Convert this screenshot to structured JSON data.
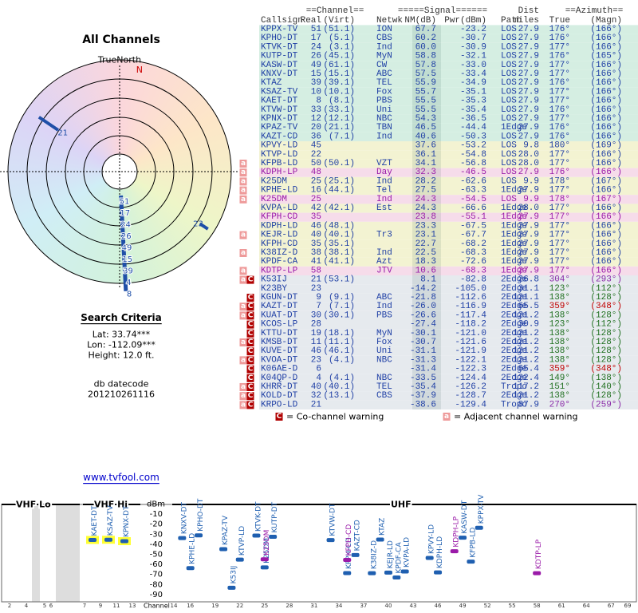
{
  "header": {
    "channel_group": "==Channel==",
    "signal_group": "=====Signal======",
    "dist_top": "Dist",
    "azimuth_group": "==Azimuth==",
    "columns": [
      "Callsign",
      "Real",
      "(Virt)",
      "Netwk",
      "NM(dB)",
      "Pwr(dBm)",
      "Path",
      "miles",
      "True",
      "(Magn)"
    ]
  },
  "table": {
    "rows": [
      {
        "cells": [
          "KPPX-TV",
          "51",
          "(51.1)",
          "ION",
          "67.7",
          "-23.2",
          "LOS",
          "27.9",
          "176°",
          "(166°)"
        ],
        "background": "#d5eee2",
        "color": "#1f3fa5"
      },
      {
        "cells": [
          "KPHO-DT",
          "17",
          "(5.1)",
          "CBS",
          "60.2",
          "-30.7",
          "LOS",
          "27.9",
          "176°",
          "(166°)"
        ],
        "background": "#d5eee2",
        "color": "#1f3fa5"
      },
      {
        "cells": [
          "KTVK-DT",
          "24",
          "(3.1)",
          "Ind",
          "60.0",
          "-30.9",
          "LOS",
          "27.9",
          "177°",
          "(166°)"
        ],
        "background": "#d5eee2",
        "color": "#1f3fa5"
      },
      {
        "cells": [
          "KUTP-DT",
          "26",
          "(45.1)",
          "MyN",
          "58.8",
          "-32.1",
          "LOS",
          "27.9",
          "176°",
          "(165°)"
        ],
        "background": "#d5eee2",
        "color": "#1f3fa5"
      },
      {
        "cells": [
          "KASW-DT",
          "49",
          "(61.1)",
          "CW",
          "57.8",
          "-33.0",
          "LOS",
          "27.9",
          "177°",
          "(166°)"
        ],
        "background": "#d5eee2",
        "color": "#1f3fa5"
      },
      {
        "cells": [
          "KNXV-DT",
          "15",
          "(15.1)",
          "ABC",
          "57.5",
          "-33.4",
          "LOS",
          "27.9",
          "177°",
          "(166°)"
        ],
        "background": "#d5eee2",
        "color": "#1f3fa5"
      },
      {
        "cells": [
          "KTAZ",
          "39",
          "(39.1)",
          "TEL",
          "55.9",
          "-34.9",
          "LOS",
          "27.9",
          "176°",
          "(166°)"
        ],
        "background": "#d5eee2",
        "color": "#1f3fa5"
      },
      {
        "cells": [
          "KSAZ-TV",
          "10",
          "(10.1)",
          "Fox",
          "55.7",
          "-35.1",
          "LOS",
          "27.9",
          "177°",
          "(166°)"
        ],
        "background": "#d5eee2",
        "color": "#1f3fa5"
      },
      {
        "cells": [
          "KAET-DT",
          "8",
          "(8.1)",
          "PBS",
          "55.5",
          "-35.3",
          "LOS",
          "27.9",
          "177°",
          "(166°)"
        ],
        "background": "#d5eee2",
        "color": "#1f3fa5"
      },
      {
        "cells": [
          "KTVW-DT",
          "33",
          "(33.1)",
          "Uni",
          "55.5",
          "-35.4",
          "LOS",
          "27.9",
          "176°",
          "(166°)"
        ],
        "background": "#d5eee2",
        "color": "#1f3fa5"
      },
      {
        "cells": [
          "KPNX-DT",
          "12",
          "(12.1)",
          "NBC",
          "54.3",
          "-36.5",
          "LOS",
          "27.9",
          "177°",
          "(166°)"
        ],
        "background": "#d5eee2",
        "color": "#1f3fa5"
      },
      {
        "cells": [
          "KPAZ-TV",
          "20",
          "(21.1)",
          "TBN",
          "46.5",
          "-44.4",
          "1Edge",
          "27.9",
          "176°",
          "(166°)"
        ],
        "background": "#d5eee2",
        "color": "#1f3fa5"
      },
      {
        "cells": [
          "KAZT-CD",
          "36",
          "(7.1)",
          "Ind",
          "40.6",
          "-50.3",
          "LOS",
          "27.9",
          "176°",
          "(166°)"
        ],
        "background": "#d5eee2",
        "color": "#1f3fa5"
      },
      {
        "cells": [
          "KPVY-LD",
          "45",
          null,
          null,
          "37.6",
          "-53.2",
          "LOS",
          "9.8",
          "180°",
          "(169°)"
        ],
        "background": "#f3f3d2",
        "color": "#1f3fa5"
      },
      {
        "cells": [
          "KTVP-LD",
          "22",
          null,
          null,
          "36.1",
          "-54.8",
          "LOS",
          "28.0",
          "177°",
          "(166°)"
        ],
        "background": "#f3f3d2",
        "color": "#1f3fa5"
      },
      {
        "cells": [
          "KFPB-LD",
          "50",
          "(50.1)",
          "VZT",
          "34.1",
          "-56.8",
          "LOS",
          "28.0",
          "177°",
          "(166°)"
        ],
        "background": "#f3f3d2",
        "color": "#1f3fa5",
        "warnings": [
          "a"
        ]
      },
      {
        "cells": [
          "KDPH-LP",
          "48",
          null,
          "Day",
          "32.3",
          "-46.5",
          "LOS",
          "27.9",
          "176°",
          "(166°)"
        ],
        "background": "#f6dcea",
        "color": "#9a1aa8",
        "warnings": [
          "a"
        ]
      },
      {
        "cells": [
          "K25DM",
          "25",
          "(25.1)",
          "Ind",
          "28.2",
          "-62.6",
          "LOS",
          "9.9",
          "178°",
          "(167°)"
        ],
        "background": "#f3f3d2",
        "color": "#1f3fa5",
        "warnings": [
          "a"
        ]
      },
      {
        "cells": [
          "KPHE-LD",
          "16",
          "(44.1)",
          "Tel",
          "27.5",
          "-63.3",
          "1Edge",
          "27.9",
          "177°",
          "(166°)"
        ],
        "background": "#f3f3d2",
        "color": "#1f3fa5",
        "warnings": [
          "a"
        ]
      },
      {
        "cells": [
          "K25DM",
          "25",
          null,
          "Ind",
          "24.3",
          "-54.5",
          "LOS",
          "9.9",
          "178°",
          "(167°)"
        ],
        "background": "#f6dcea",
        "color": "#9a1aa8",
        "warnings": [
          "a"
        ]
      },
      {
        "cells": [
          "KVPA-LD",
          "42",
          "(42.1)",
          "Est",
          "24.3",
          "-66.6",
          "1Edge",
          "28.0",
          "177°",
          "(166°)"
        ],
        "background": "#f3f3d2",
        "color": "#1f3fa5"
      },
      {
        "cells": [
          "KFPH-CD",
          "35",
          null,
          null,
          "23.8",
          "-55.1",
          "1Edge",
          "27.9",
          "177°",
          "(166°)"
        ],
        "background": "#f6dcea",
        "color": "#9a1aa8"
      },
      {
        "cells": [
          "KDPH-LD",
          "46",
          "(48.1)",
          null,
          "23.3",
          "-67.5",
          "1Edge",
          "27.9",
          "177°",
          "(166°)"
        ],
        "background": "#f3f3d2",
        "color": "#1f3fa5"
      },
      {
        "cells": [
          "KEJR-LD",
          "40",
          "(40.1)",
          "Tr3",
          "23.1",
          "-67.7",
          "1Edge",
          "27.9",
          "177°",
          "(166°)"
        ],
        "background": "#f3f3d2",
        "color": "#1f3fa5",
        "warnings": [
          "a"
        ]
      },
      {
        "cells": [
          "KFPH-CD",
          "35",
          "(35.1)",
          null,
          "22.7",
          "-68.2",
          "1Edge",
          "27.9",
          "177°",
          "(166°)"
        ],
        "background": "#f3f3d2",
        "color": "#1f3fa5"
      },
      {
        "cells": [
          "K38IZ-D",
          "38",
          "(38.1)",
          "Ind",
          "22.5",
          "-68.3",
          "1Edge",
          "27.9",
          "177°",
          "(166°)"
        ],
        "background": "#f3f3d2",
        "color": "#1f3fa5",
        "warnings": [
          "a"
        ]
      },
      {
        "cells": [
          "KPDF-CA",
          "41",
          "(41.1)",
          "Azt",
          "18.3",
          "-72.6",
          "1Edge",
          "27.9",
          "177°",
          "(166°)"
        ],
        "background": "#f3f3d2",
        "color": "#1f3fa5"
      },
      {
        "cells": [
          "KDTP-LP",
          "58",
          null,
          "JTV",
          "10.6",
          "-68.3",
          "1Edge",
          "27.9",
          "177°",
          "(166°)"
        ],
        "background": "#f6dcea",
        "color": "#9a1aa8",
        "warnings": [
          "a"
        ]
      },
      {
        "cells": [
          "K53IJ",
          "21",
          "(53.1)",
          null,
          "8.1",
          "-82.8",
          "2Edge",
          "26.8",
          "304°",
          "(293°)"
        ],
        "background": "#e6eaee",
        "color": "#1f3fa5",
        "azimuth_color": "#8a2aa8",
        "warnings": [
          "a",
          "C"
        ]
      },
      {
        "cells": [
          "K23BY",
          "23",
          null,
          null,
          "-14.2",
          "-105.0",
          "2Edge",
          "31.1",
          "123°",
          "(112°)"
        ],
        "background": "#e6eaee",
        "color": "#1f3fa5",
        "azimuth_color": "#207020"
      },
      {
        "cells": [
          "KGUN-DT",
          "9",
          "(9.1)",
          "ABC",
          "-21.8",
          "-112.6",
          "2Edge",
          "121.1",
          "138°",
          "(128°)"
        ],
        "background": "#e6eaee",
        "color": "#1f3fa5",
        "azimuth_color": "#207020",
        "warnings": [
          "C"
        ]
      },
      {
        "cells": [
          "KAZT-DT",
          "7",
          "(7.1)",
          "Ind",
          "-26.0",
          "-116.9",
          "2Edge",
          "65.5",
          "359°",
          "(348°)"
        ],
        "background": "#e6eaee",
        "color": "#1f3fa5",
        "azimuth_color": "#c00000",
        "warnings": [
          "a",
          "C"
        ]
      },
      {
        "cells": [
          "KUAT-DT",
          "30",
          "(30.1)",
          "PBS",
          "-26.6",
          "-117.4",
          "2Edge",
          "121.2",
          "138°",
          "(128°)"
        ],
        "background": "#e6eaee",
        "color": "#1f3fa5",
        "azimuth_color": "#207020",
        "warnings": [
          "a",
          "C"
        ]
      },
      {
        "cells": [
          "KCOS-LP",
          "28",
          null,
          null,
          "-27.4",
          "-118.2",
          "2Edge",
          "30.9",
          "123°",
          "(112°)"
        ],
        "background": "#e6eaee",
        "color": "#1f3fa5",
        "azimuth_color": "#207020",
        "warnings": [
          "C"
        ]
      },
      {
        "cells": [
          "KTTU-DT",
          "19",
          "(18.1)",
          "MyN",
          "-30.1",
          "-121.0",
          "2Edge",
          "121.2",
          "138°",
          "(128°)"
        ],
        "background": "#e6eaee",
        "color": "#1f3fa5",
        "azimuth_color": "#207020",
        "warnings": [
          "C"
        ]
      },
      {
        "cells": [
          "KMSB-DT",
          "11",
          "(11.1)",
          "Fox",
          "-30.7",
          "-121.6",
          "2Edge",
          "121.2",
          "138°",
          "(128°)"
        ],
        "background": "#e6eaee",
        "color": "#1f3fa5",
        "azimuth_color": "#207020",
        "warnings": [
          "a",
          "C"
        ]
      },
      {
        "cells": [
          "KUVE-DT",
          "46",
          "(46.1)",
          "Uni",
          "-31.1",
          "-121.9",
          "2Edge",
          "121.2",
          "138°",
          "(128°)"
        ],
        "background": "#e6eaee",
        "color": "#1f3fa5",
        "azimuth_color": "#207020",
        "warnings": [
          "C"
        ]
      },
      {
        "cells": [
          "KVOA-DT",
          "23",
          "(4.1)",
          "NBC",
          "-31.3",
          "-122.1",
          "2Edge",
          "121.2",
          "138°",
          "(128°)"
        ],
        "background": "#e6eaee",
        "color": "#1f3fa5",
        "azimuth_color": "#207020",
        "warnings": [
          "a",
          "C"
        ]
      },
      {
        "cells": [
          "K06AE-D",
          "6",
          null,
          null,
          "-31.4",
          "-122.3",
          "2Edge",
          "65.4",
          "359°",
          "(348°)"
        ],
        "background": "#e6eaee",
        "color": "#1f3fa5",
        "azimuth_color": "#c00000",
        "warnings": [
          "C"
        ]
      },
      {
        "cells": [
          "K04QP-D",
          "4",
          "(4.1)",
          "NBC",
          "-33.5",
          "-124.4",
          "2Edge",
          "122.4",
          "149°",
          "(138°)"
        ],
        "background": "#e6eaee",
        "color": "#1f3fa5",
        "azimuth_color": "#207020",
        "warnings": [
          "C"
        ]
      },
      {
        "cells": [
          "KHRR-DT",
          "40",
          "(40.1)",
          "TEL",
          "-35.4",
          "-126.2",
          "Tropo",
          "117.2",
          "151°",
          "(140°)"
        ],
        "background": "#e6eaee",
        "color": "#1f3fa5",
        "azimuth_color": "#207020",
        "warnings": [
          "a",
          "C"
        ]
      },
      {
        "cells": [
          "KOLD-DT",
          "32",
          "(13.1)",
          "CBS",
          "-37.9",
          "-128.7",
          "2Edge",
          "121.2",
          "138°",
          "(128°)"
        ],
        "background": "#e6eaee",
        "color": "#1f3fa5",
        "azimuth_color": "#207020",
        "warnings": [
          "a",
          "C"
        ]
      },
      {
        "cells": [
          "KRPO-LD",
          "21",
          null,
          null,
          "-38.6",
          "-129.4",
          "Tropo",
          "87.9",
          "270°",
          "(259°)"
        ],
        "background": "#e6eaee",
        "color": "#1f3fa5",
        "azimuth_color": "#8a2aa8",
        "warnings": [
          "a",
          "C"
        ]
      }
    ]
  },
  "legend": [
    {
      "icon": "C",
      "text": "= Co-channel warning"
    },
    {
      "icon": "a",
      "text": "= Adjacent channel warning"
    }
  ],
  "polar": {
    "title": "All Channels",
    "north_label": "TrueNorth",
    "magnetic_label": "N",
    "magnetic_azimuth": 11,
    "outer": [
      {
        "text": "21",
        "azimuth": 304
      },
      {
        "text": "23",
        "azimuth": 123
      }
    ],
    "cluster_azimuth": 177,
    "cluster": [
      "51",
      "17",
      "24",
      "26",
      "49",
      "15",
      "39",
      "4",
      "8"
    ]
  },
  "search": {
    "title": "Search Criteria",
    "lat": "Lat: 33.74***",
    "lon": "Lon: -112.09***",
    "height": "Height: 12.0 ft.",
    "datecode_label": "db datecode",
    "datecode": "201210261116",
    "link": "www.tvfool.com"
  },
  "spectrum": {
    "bands": [
      "VHF Lo",
      "VHF Hi",
      "UHF"
    ],
    "y_label": "dBm",
    "x_label": "Channel",
    "ylim": [
      -96,
      0
    ],
    "yticks": [
      -10,
      -20,
      -30,
      -40,
      -50,
      -60,
      -70,
      -80,
      -90
    ],
    "xticks": [
      2,
      4,
      5,
      6,
      7,
      9,
      11,
      13,
      14,
      16,
      19,
      22,
      25,
      28,
      31,
      34,
      37,
      40,
      43,
      46,
      49,
      52,
      55,
      58,
      61,
      64,
      67,
      69
    ],
    "stations": [
      {
        "name": "KAET-DT",
        "channel": 8,
        "dbm": -35.3,
        "color": "#1f5fb0"
      },
      {
        "name": "KSAZ-TV",
        "channel": 10,
        "dbm": -35.1,
        "color": "#1f5fb0"
      },
      {
        "name": "KPNX-DT",
        "channel": 12,
        "dbm": -36.5,
        "color": "#1f5fb0"
      },
      {
        "name": "KNXV-DT",
        "channel": 15,
        "dbm": -33.4,
        "color": "#1f5fb0"
      },
      {
        "name": "KPHE-LD",
        "channel": 16,
        "dbm": -63.3,
        "color": "#1f5fb0"
      },
      {
        "name": "KPHO-DT",
        "channel": 17,
        "dbm": -30.7,
        "color": "#1f5fb0"
      },
      {
        "name": "KPAZ-TV",
        "channel": 20,
        "dbm": -44.4,
        "color": "#1f5fb0"
      },
      {
        "name": "K53IJ",
        "channel": 21,
        "dbm": -82.8,
        "color": "#1f5fb0"
      },
      {
        "name": "KTVP-LD",
        "channel": 22,
        "dbm": -54.8,
        "color": "#1f5fb0"
      },
      {
        "name": "KTVK-DT",
        "channel": 24,
        "dbm": -30.9,
        "color": "#1f5fb0"
      },
      {
        "name": "K25DM",
        "channel": 25,
        "dbm": -62.6,
        "color": "#1f5fb0"
      },
      {
        "name": "K25DM",
        "channel": 25,
        "dbm": -54.5,
        "color": "#9a1aa8"
      },
      {
        "name": "KUTP-DT",
        "channel": 26,
        "dbm": -32.1,
        "color": "#1f5fb0"
      },
      {
        "name": "KTVW-DT",
        "channel": 33,
        "dbm": -35.4,
        "color": "#1f5fb0"
      },
      {
        "name": "KFPH-CD",
        "channel": 35,
        "dbm": -68.2,
        "color": "#1f5fb0"
      },
      {
        "name": "KFPH-CD",
        "channel": 35,
        "dbm": -55.1,
        "color": "#9a1aa8"
      },
      {
        "name": "KAZT-CD",
        "channel": 36,
        "dbm": -50.3,
        "color": "#1f5fb0"
      },
      {
        "name": "K38IZ-D",
        "channel": 38,
        "dbm": -68.3,
        "color": "#1f5fb0"
      },
      {
        "name": "KTAZ",
        "channel": 39,
        "dbm": -34.9,
        "color": "#1f5fb0"
      },
      {
        "name": "KEJR-LD",
        "channel": 40,
        "dbm": -67.7,
        "color": "#1f5fb0"
      },
      {
        "name": "KPDF-CA",
        "channel": 41,
        "dbm": -72.6,
        "color": "#1f5fb0"
      },
      {
        "name": "KVPA-LD",
        "channel": 42,
        "dbm": -66.6,
        "color": "#1f5fb0"
      },
      {
        "name": "KPVY-LD",
        "channel": 45,
        "dbm": -53.2,
        "color": "#1f5fb0"
      },
      {
        "name": "KDPH-LD",
        "channel": 46,
        "dbm": -67.5,
        "color": "#1f5fb0"
      },
      {
        "name": "KDPH-LP",
        "channel": 48,
        "dbm": -46.5,
        "color": "#9a1aa8"
      },
      {
        "name": "KASW-DT",
        "channel": 49,
        "dbm": -33.0,
        "color": "#1f5fb0"
      },
      {
        "name": "KFPB-LD",
        "channel": 50,
        "dbm": -56.8,
        "color": "#1f5fb0"
      },
      {
        "name": "KPPX-TV",
        "channel": 51,
        "dbm": -23.2,
        "color": "#1f5fb0"
      },
      {
        "name": "KDTP-LP",
        "channel": 58,
        "dbm": -68.3,
        "color": "#9a1aa8"
      }
    ]
  }
}
